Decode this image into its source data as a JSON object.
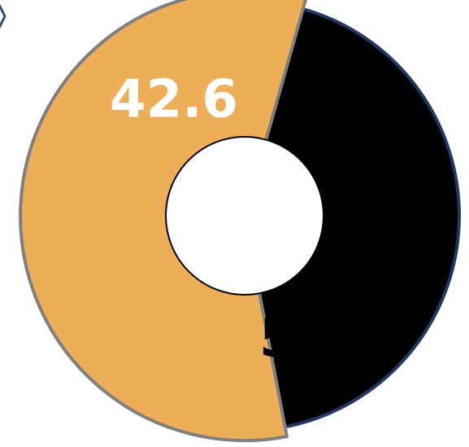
{
  "chart_data": {
    "type": "pie",
    "slices": [
      {
        "value": 42.6,
        "label": "42.6",
        "color": "#000000",
        "stroke": "#1f3864",
        "label_color": "#ffffff"
      },
      {
        "value": 57.4,
        "label": "57.4",
        "color": "#eead57",
        "stroke": "#7f7f7f",
        "label_color": "#000000"
      }
    ],
    "hole_color": "#ffffff",
    "legend": "none"
  }
}
